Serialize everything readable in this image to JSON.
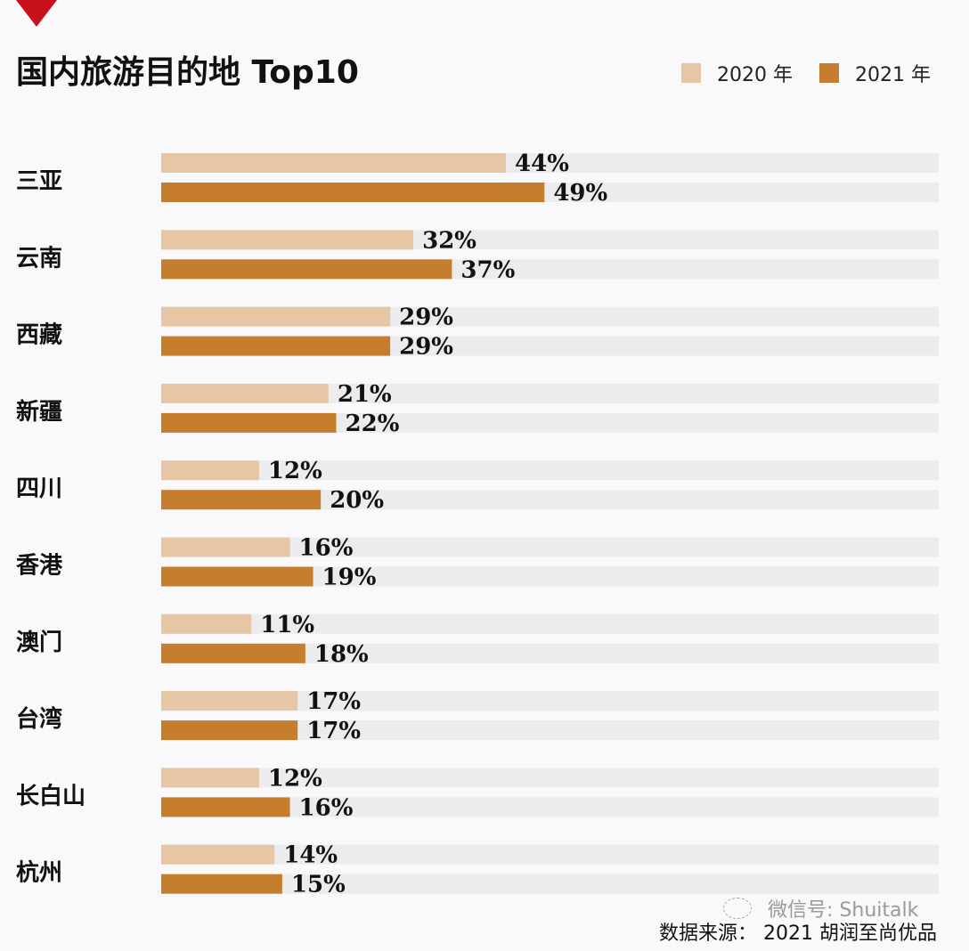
{
  "header": {
    "title": "国内旅游目的地 Top10"
  },
  "legend": [
    {
      "label": "2020 年",
      "color": "#e6c6a4"
    },
    {
      "label": "2021 年",
      "color": "#c47e2e"
    }
  ],
  "footer": {
    "watermark": "微信号: Shuitalk",
    "source": "数据来源： 2021 胡润至尚优品"
  },
  "colors": {
    "track": "#ececef",
    "accent_triangle": "#c8101a"
  },
  "chart_data": {
    "type": "bar",
    "orientation": "horizontal",
    "title": "国内旅游目的地 Top10",
    "categories": [
      "三亚",
      "云南",
      "西藏",
      "新疆",
      "四川",
      "香港",
      "澳门",
      "台湾",
      "长白山",
      "杭州"
    ],
    "series": [
      {
        "name": "2020 年",
        "color": "#e6c6a4",
        "values": [
          44,
          32,
          29,
          21,
          12,
          16,
          11,
          17,
          12,
          14
        ],
        "labels": [
          "44%",
          "32%",
          "29%",
          "21%",
          "12%",
          "16%",
          "11%",
          "17%",
          "12%",
          "14%"
        ]
      },
      {
        "name": "2021 年",
        "color": "#c47e2e",
        "values": [
          49,
          37,
          29,
          22,
          20,
          19,
          18,
          17,
          16,
          15
        ],
        "labels": [
          "49%",
          "37%",
          "29%",
          "22%",
          "20%",
          "19%",
          "18%",
          "17%",
          "16%",
          "15%"
        ]
      }
    ],
    "unit": "%",
    "xlabel": "",
    "ylabel": "",
    "legend_position": "top-right",
    "grid": false
  }
}
